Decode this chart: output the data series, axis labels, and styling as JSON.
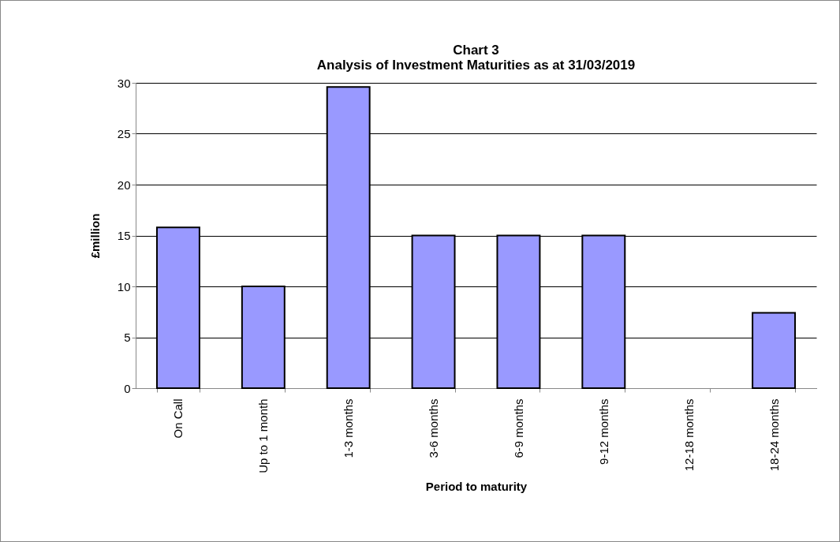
{
  "chart_data": {
    "type": "bar",
    "title": "Chart 3",
    "subtitle": "Analysis of Investment Maturities as at 31/03/2019",
    "xlabel": "Period to maturity",
    "ylabel": "£million",
    "categories": [
      "On Call",
      "Up to 1 month",
      "1-3 months",
      "3-6 months",
      "6-9 months",
      "9-12 months",
      "12-18 months",
      "18-24 months"
    ],
    "values": [
      15.8,
      10,
      29.6,
      15,
      15,
      15,
      0,
      7.4
    ],
    "color": "#9999ff",
    "ylim": [
      0,
      30
    ],
    "yticks": [
      0,
      5,
      10,
      15,
      20,
      25,
      30
    ],
    "grid": "y"
  }
}
